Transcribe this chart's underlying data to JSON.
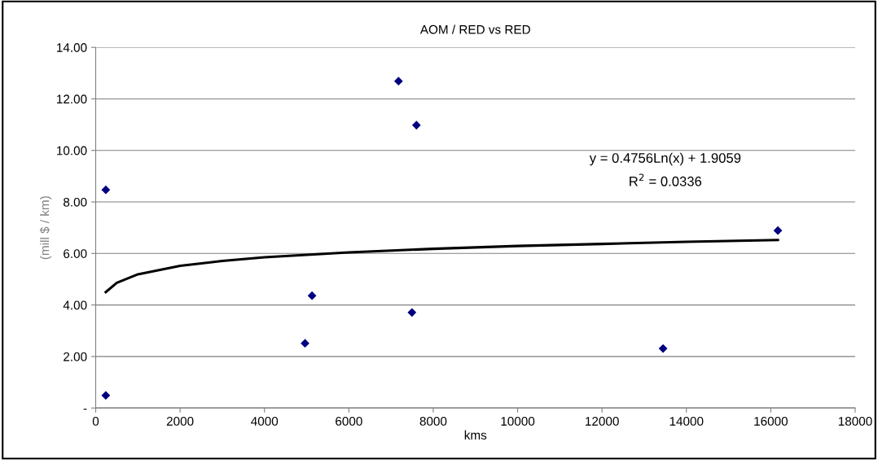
{
  "chart_data": {
    "type": "scatter",
    "title": "AOM / RED vs RED",
    "xlabel": "kms",
    "ylabel": "(mill $ / km)",
    "xlim": [
      0,
      18000
    ],
    "xticks": [
      0,
      2000,
      4000,
      6000,
      8000,
      10000,
      12000,
      14000,
      16000,
      18000
    ],
    "ylim": [
      0,
      14
    ],
    "yticks": [
      {
        "value": 0,
        "label": "-"
      },
      {
        "value": 2,
        "label": "2.00"
      },
      {
        "value": 4,
        "label": "4.00"
      },
      {
        "value": 6,
        "label": "6.00"
      },
      {
        "value": 8,
        "label": "8.00"
      },
      {
        "value": 10,
        "label": "10.00"
      },
      {
        "value": 12,
        "label": "12.00"
      },
      {
        "value": 14,
        "label": "14.00"
      }
    ],
    "grid": "y",
    "legend": false,
    "series": [
      {
        "color": "#000080",
        "marker": "diamond",
        "x": [
          239,
          239,
          7177,
          7601,
          4961,
          5127,
          7495,
          13447,
          16168
        ],
        "values": [
          8.47,
          0.49,
          12.69,
          10.98,
          2.51,
          4.36,
          3.71,
          2.31,
          6.89
        ]
      },
      {
        "type": "line",
        "color": "#000000",
        "marker": "none",
        "line_style": "solid",
        "x": [
          239,
          500,
          1000,
          2000,
          3000,
          4000,
          6000,
          8000,
          10000,
          12000,
          14000,
          16168
        ],
        "values": [
          4.5,
          4.86,
          5.19,
          5.52,
          5.71,
          5.85,
          6.04,
          6.18,
          6.29,
          6.37,
          6.45,
          6.52
        ]
      }
    ],
    "annotations": [
      "y = 0.4756Ln(x) + 1.9059",
      "R$^{2}$ = 0.0336"
    ]
  }
}
